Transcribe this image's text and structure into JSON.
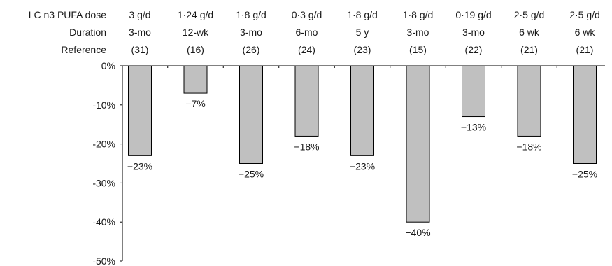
{
  "chart_data": {
    "type": "bar",
    "header_rows": [
      {
        "label": "LC n3 PUFA dose",
        "values": [
          "3 g/d",
          "1·24 g/d",
          "1·8 g/d",
          "0·3 g/d",
          "1·8 g/d",
          "1·8 g/d",
          "0·19 g/d",
          "2·5 g/d",
          "2·5 g/d"
        ]
      },
      {
        "label": "Duration",
        "values": [
          "3-mo",
          "12-wk",
          "3-mo",
          "6-mo",
          "5 y",
          "3-mo",
          "3-mo",
          "6 wk",
          "6 wk"
        ]
      },
      {
        "label": "Reference",
        "values": [
          "(31)",
          "(16)",
          "(26)",
          "(24)",
          "(23)",
          "(15)",
          "(22)",
          "(21)",
          "(21)"
        ]
      }
    ],
    "values": [
      -23,
      -7,
      -25,
      -18,
      -23,
      -40,
      -13,
      -18,
      -25
    ],
    "value_labels": [
      "−23%",
      "−7%",
      "−25%",
      "−18%",
      "−23%",
      "−40%",
      "−13%",
      "−18%",
      "−25%"
    ],
    "ylim": [
      -50,
      0
    ],
    "yticks": [
      0,
      -10,
      -20,
      -30,
      -40,
      -50
    ],
    "ytick_labels": [
      "0%",
      "-10%",
      "-20%",
      "-30%",
      "-40%",
      "-50%"
    ],
    "grid": false,
    "bar_color": "#c0c0c0",
    "bar_edge_color": "#000000"
  }
}
